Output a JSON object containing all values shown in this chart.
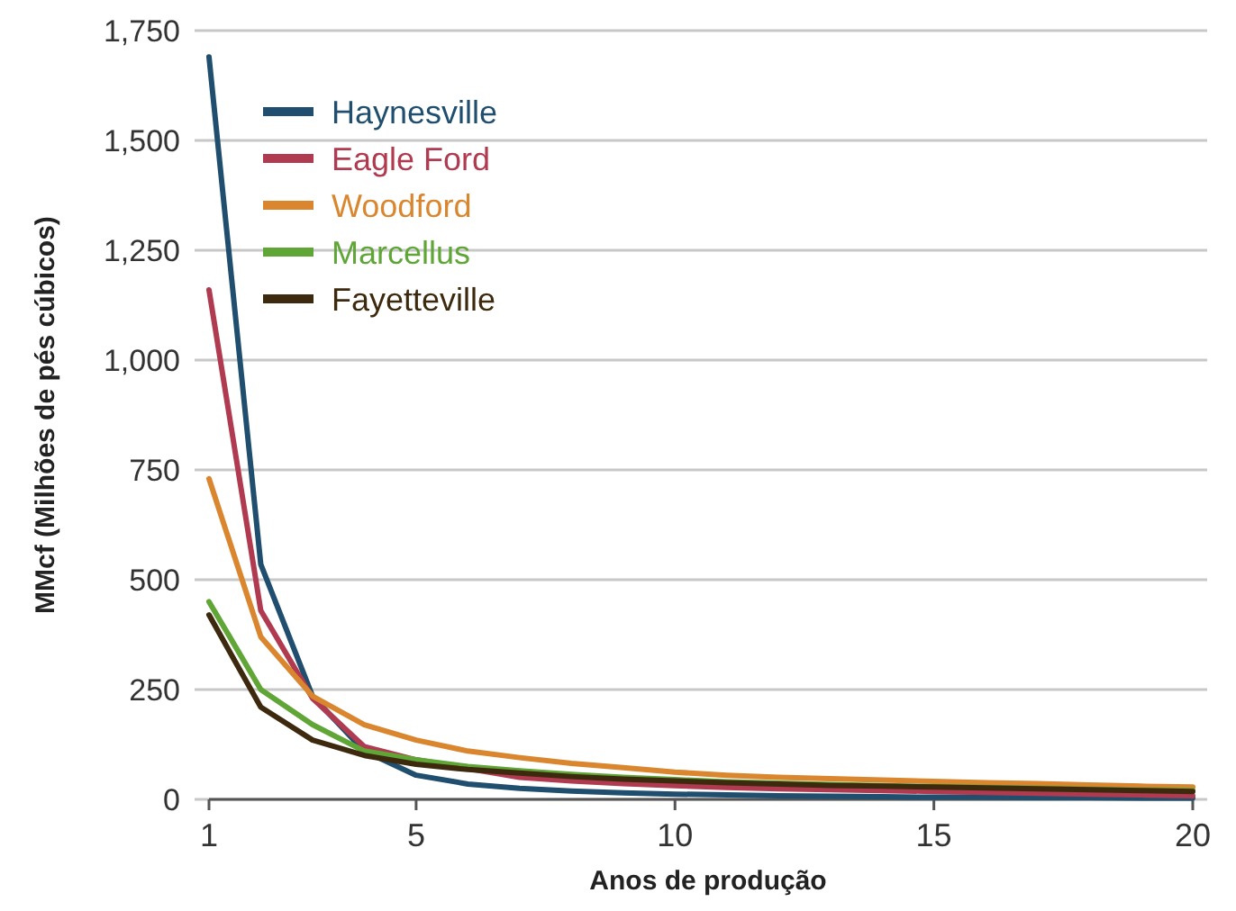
{
  "chart_data": {
    "type": "line",
    "xlabel": "Anos de produção",
    "ylabel": "MMcf (Milhões de pés cúbicos)",
    "x": [
      1,
      2,
      3,
      4,
      5,
      6,
      7,
      8,
      9,
      10,
      11,
      12,
      13,
      14,
      15,
      16,
      17,
      18,
      19,
      20
    ],
    "xlim": [
      1,
      20
    ],
    "xticks": [
      1,
      5,
      10,
      15,
      20
    ],
    "ylim": [
      0,
      1750
    ],
    "yticks": [
      0,
      250,
      500,
      750,
      {
        "value": 1000,
        "label": "1,000"
      },
      {
        "value": 1250,
        "label": "1,250"
      },
      {
        "value": 1500,
        "label": "1,500"
      },
      {
        "value": 1750,
        "label": "1,750"
      }
    ],
    "grid": "y",
    "legend": "top left",
    "marker": "none",
    "line_style": "solid",
    "series": [
      {
        "name": "Haynesville",
        "color": "#1f4e6e",
        "values": [
          1690,
          535,
          235,
          110,
          55,
          35,
          25,
          19,
          15,
          12,
          10,
          8,
          7,
          6,
          5,
          5,
          4,
          4,
          3,
          3
        ]
      },
      {
        "name": "Eagle Ford",
        "color": "#b03a4f",
        "values": [
          1160,
          430,
          230,
          120,
          90,
          70,
          50,
          42,
          36,
          31,
          27,
          24,
          22,
          20,
          18,
          16,
          14,
          12,
          10,
          8
        ]
      },
      {
        "name": "Woodford",
        "color": "#d9862e",
        "values": [
          730,
          370,
          235,
          170,
          135,
          110,
          95,
          82,
          72,
          62,
          55,
          50,
          47,
          44,
          41,
          38,
          36,
          33,
          30,
          28
        ]
      },
      {
        "name": "Marcellus",
        "color": "#5fa636",
        "values": [
          450,
          250,
          170,
          110,
          90,
          75,
          65,
          57,
          50,
          45,
          40,
          37,
          34,
          31,
          29,
          27,
          25,
          23,
          21,
          20
        ]
      },
      {
        "name": "Fayetteville",
        "color": "#3d2a0e",
        "values": [
          420,
          210,
          135,
          100,
          80,
          68,
          60,
          52,
          46,
          42,
          38,
          35,
          32,
          30,
          28,
          26,
          24,
          22,
          20,
          18
        ]
      }
    ]
  }
}
